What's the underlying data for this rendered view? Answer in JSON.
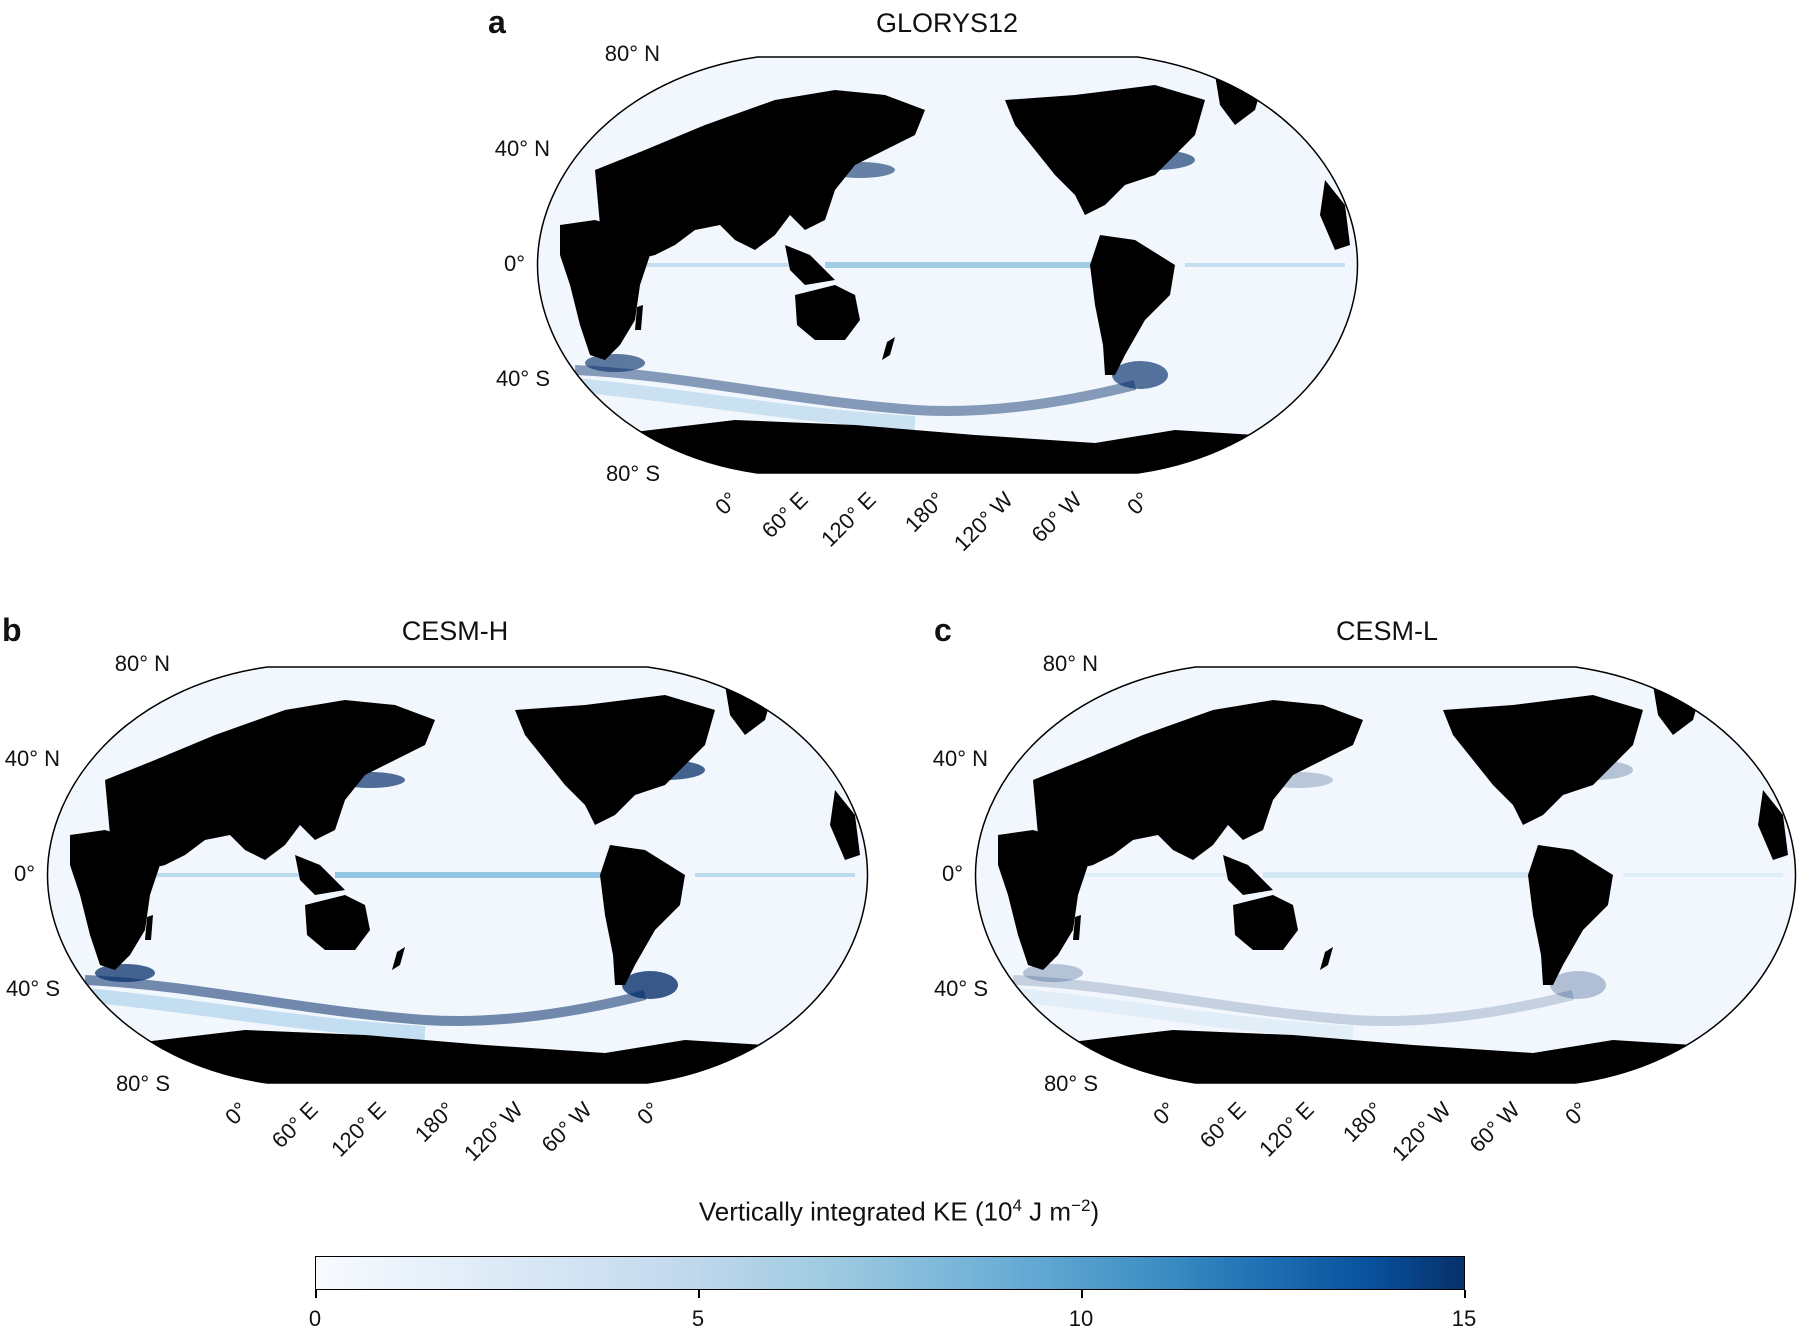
{
  "panels": [
    {
      "letter": "a",
      "title": "GLORYS12",
      "variant": "obs"
    },
    {
      "letter": "b",
      "title": "CESM-H",
      "variant": "high"
    },
    {
      "letter": "c",
      "title": "CESM-L",
      "variant": "low"
    }
  ],
  "lat_labels": [
    "80° N",
    "40° N",
    "0°",
    "40° S",
    "80° S"
  ],
  "lon_labels": [
    "0°",
    "60° E",
    "120° E",
    "180°",
    "120° W",
    "60° W",
    "0°"
  ],
  "colorbar": {
    "title": "Vertically integrated KE (10",
    "title_sup1": "4",
    "title_mid": " J m",
    "title_sup2": "−2",
    "title_end": ")",
    "ticks": [
      "0",
      "5",
      "10",
      "15"
    ],
    "range": [
      0,
      15
    ],
    "colormap": "Blues"
  },
  "colors": {
    "land": "#000000",
    "ocean_low": "#f2f7fd",
    "ke_mid": "#6baed6",
    "ke_high": "#08306b"
  }
}
